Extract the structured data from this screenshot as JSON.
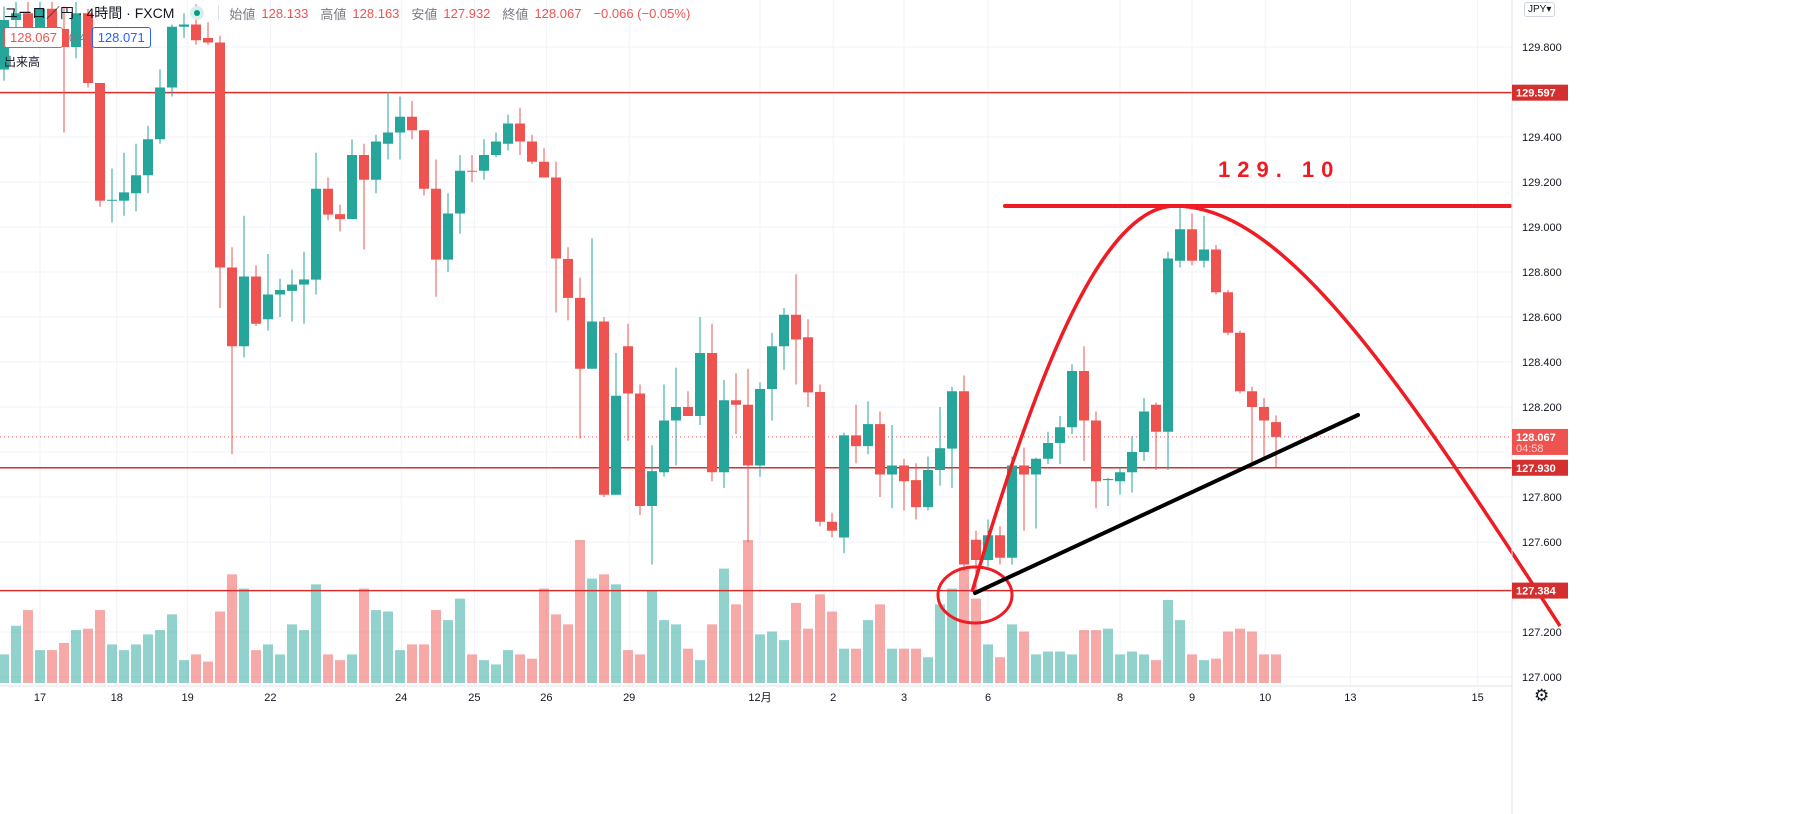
{
  "header": {
    "symbol": "ユーロ／円",
    "interval": "4時間",
    "source": "FXCM",
    "open_label": "始値",
    "open": "128.133",
    "high_label": "高値",
    "high": "128.163",
    "low_label": "安値",
    "low": "127.932",
    "close_label": "終値",
    "close": "128.067",
    "change": "−0.066 (−0.05%)",
    "bid": "128.067",
    "spread": "0.4",
    "ask": "128.071",
    "volume_label": "出来高"
  },
  "axis": {
    "currency": "JPY▾",
    "settings_icon": "gear-icon"
  },
  "colors": {
    "up": "#26a69a",
    "down": "#ef5350",
    "level": "#d32f2f",
    "drawing": "#f01c24",
    "trend": "#000000"
  },
  "chart_data": {
    "type": "candlestick",
    "title": "ユーロ／円 · 4時間 · FXCM",
    "ylim": [
      127.0,
      129.95
    ],
    "y_ticks": [
      "129.800",
      "129.400",
      "129.200",
      "129.000",
      "128.800",
      "128.600",
      "128.400",
      "128.200",
      "127.800",
      "127.600",
      "127.200",
      "127.000"
    ],
    "x_ticks": [
      {
        "label": "17",
        "bar": 3
      },
      {
        "label": "18",
        "bar": 9.4
      },
      {
        "label": "19",
        "bar": 15.3
      },
      {
        "label": "22",
        "bar": 22.2
      },
      {
        "label": "24",
        "bar": 33.1
      },
      {
        "label": "25",
        "bar": 39.2
      },
      {
        "label": "26",
        "bar": 45.2
      },
      {
        "label": "29",
        "bar": 52.1
      },
      {
        "label": "12月",
        "bar": 63
      },
      {
        "label": "2",
        "bar": 69.1
      },
      {
        "label": "3",
        "bar": 75
      },
      {
        "label": "6",
        "bar": 82
      },
      {
        "label": "8",
        "bar": 93
      },
      {
        "label": "9",
        "bar": 99
      },
      {
        "label": "10",
        "bar": 105.1
      },
      {
        "label": "13",
        "bar": 112.2
      },
      {
        "label": "15",
        "bar": 122.8
      }
    ],
    "price_labels": [
      {
        "value": "129.597",
        "kind": "level"
      },
      {
        "value": "128.067",
        "sub": "04:58",
        "kind": "last"
      },
      {
        "value": "127.930",
        "kind": "level"
      },
      {
        "value": "127.384",
        "kind": "level"
      }
    ],
    "horizontal_levels": [
      129.597,
      127.93,
      127.384
    ],
    "last_price": 128.067,
    "annotation": {
      "text": "129. 10",
      "price": 129.1
    },
    "ohlc": [
      [
        129.7,
        129.98,
        129.65,
        129.92
      ],
      [
        129.92,
        130.0,
        129.85,
        129.95
      ],
      [
        129.95,
        130.0,
        129.8,
        129.85
      ],
      [
        129.85,
        130.0,
        129.8,
        129.97
      ],
      [
        129.97,
        130.0,
        129.85,
        129.88
      ],
      [
        129.88,
        129.98,
        129.42,
        129.8
      ],
      [
        129.8,
        130.0,
        129.75,
        129.95
      ],
      [
        129.95,
        129.97,
        129.62,
        129.64
      ],
      [
        129.64,
        129.64,
        129.09,
        129.117
      ],
      [
        129.12,
        129.26,
        129.02,
        129.121
      ],
      [
        129.117,
        129.33,
        129.05,
        129.154
      ],
      [
        129.15,
        129.37,
        129.07,
        129.23
      ],
      [
        129.23,
        129.45,
        129.15,
        129.39
      ],
      [
        129.39,
        129.7,
        129.37,
        129.62
      ],
      [
        129.62,
        129.9,
        129.58,
        129.89
      ],
      [
        129.89,
        129.95,
        129.84,
        129.9
      ],
      [
        129.9,
        129.99,
        129.81,
        129.83
      ],
      [
        129.84,
        129.91,
        129.81,
        129.82
      ],
      [
        129.82,
        129.85,
        128.64,
        128.82
      ],
      [
        128.82,
        128.91,
        127.99,
        128.47
      ],
      [
        128.47,
        129.05,
        128.42,
        128.78
      ],
      [
        128.78,
        128.83,
        128.56,
        128.57
      ],
      [
        128.59,
        128.88,
        128.54,
        128.7
      ],
      [
        128.7,
        128.77,
        128.6,
        128.72
      ],
      [
        128.716,
        128.81,
        128.58,
        128.744
      ],
      [
        128.744,
        128.89,
        128.57,
        128.767
      ],
      [
        128.766,
        129.33,
        128.7,
        129.17
      ],
      [
        129.17,
        129.22,
        129.03,
        129.055
      ],
      [
        129.057,
        129.1,
        128.98,
        129.035
      ],
      [
        129.035,
        129.39,
        129.035,
        129.32
      ],
      [
        129.32,
        129.37,
        128.9,
        129.21
      ],
      [
        129.21,
        129.41,
        129.15,
        129.38
      ],
      [
        129.37,
        129.6,
        129.3,
        129.42
      ],
      [
        129.42,
        129.58,
        129.3,
        129.49
      ],
      [
        129.49,
        129.56,
        129.39,
        129.43
      ],
      [
        129.43,
        129.43,
        129.14,
        129.17
      ],
      [
        129.17,
        129.3,
        128.69,
        128.855
      ],
      [
        128.855,
        129.15,
        128.8,
        129.06
      ],
      [
        129.06,
        129.32,
        128.97,
        129.25
      ],
      [
        129.25,
        129.32,
        129.2,
        129.248
      ],
      [
        129.25,
        129.39,
        129.21,
        129.32
      ],
      [
        129.32,
        129.42,
        129.31,
        129.38
      ],
      [
        129.37,
        129.5,
        129.34,
        129.46
      ],
      [
        129.46,
        129.53,
        129.32,
        129.38
      ],
      [
        129.38,
        129.41,
        129.28,
        129.29
      ],
      [
        129.29,
        129.35,
        129.22,
        129.22
      ],
      [
        129.22,
        129.29,
        128.62,
        128.86
      ],
      [
        128.858,
        128.91,
        128.585,
        128.685
      ],
      [
        128.685,
        128.775,
        128.06,
        128.37
      ],
      [
        128.37,
        128.95,
        128.37,
        128.58
      ],
      [
        128.58,
        128.6,
        127.8,
        127.81
      ],
      [
        127.81,
        128.44,
        127.81,
        128.25
      ],
      [
        128.47,
        128.57,
        128.05,
        128.26
      ],
      [
        128.26,
        128.3,
        127.72,
        127.76
      ],
      [
        127.76,
        128.03,
        127.5,
        127.915
      ],
      [
        127.91,
        128.3,
        127.89,
        128.14
      ],
      [
        128.14,
        128.375,
        127.94,
        128.2
      ],
      [
        128.2,
        128.27,
        128.16,
        128.16
      ],
      [
        128.16,
        128.6,
        128.12,
        128.44
      ],
      [
        128.44,
        128.57,
        127.87,
        127.91
      ],
      [
        127.91,
        128.32,
        127.84,
        128.23
      ],
      [
        128.23,
        128.35,
        128.08,
        128.21
      ],
      [
        128.21,
        128.37,
        127.6,
        127.94
      ],
      [
        127.94,
        128.31,
        127.89,
        128.28
      ],
      [
        128.28,
        128.53,
        128.14,
        128.47
      ],
      [
        128.47,
        128.64,
        128.365,
        128.61
      ],
      [
        128.61,
        128.79,
        128.3,
        128.5
      ],
      [
        128.51,
        128.59,
        128.2,
        128.265
      ],
      [
        128.267,
        128.3,
        127.67,
        127.69
      ],
      [
        127.69,
        127.73,
        127.62,
        127.65
      ],
      [
        127.62,
        128.086,
        127.55,
        128.074
      ],
      [
        128.074,
        128.21,
        127.95,
        128.026
      ],
      [
        128.026,
        128.225,
        127.99,
        128.124
      ],
      [
        128.124,
        128.18,
        127.8,
        127.9
      ],
      [
        127.9,
        128.12,
        127.75,
        127.94
      ],
      [
        127.94,
        127.97,
        127.74,
        127.87
      ],
      [
        127.875,
        127.95,
        127.7,
        127.755
      ],
      [
        127.755,
        127.98,
        127.74,
        127.92
      ],
      [
        127.92,
        128.2,
        127.85,
        128.017
      ],
      [
        128.015,
        128.29,
        127.84,
        128.27
      ],
      [
        128.27,
        128.34,
        127.47,
        127.5
      ],
      [
        127.61,
        127.65,
        127.38,
        127.52
      ],
      [
        127.52,
        127.7,
        127.49,
        127.63
      ],
      [
        127.63,
        127.67,
        127.5,
        127.53
      ],
      [
        127.53,
        127.98,
        127.5,
        127.94
      ],
      [
        127.94,
        128.02,
        127.65,
        127.9
      ],
      [
        127.9,
        127.975,
        127.66,
        127.97
      ],
      [
        127.97,
        128.09,
        127.946,
        128.04
      ],
      [
        128.04,
        128.16,
        127.946,
        128.11
      ],
      [
        128.11,
        128.39,
        128.08,
        128.36
      ],
      [
        128.36,
        128.47,
        127.96,
        128.14
      ],
      [
        128.14,
        128.18,
        127.75,
        127.87
      ],
      [
        127.875,
        127.885,
        127.76,
        127.88
      ],
      [
        127.87,
        127.93,
        127.81,
        127.91
      ],
      [
        127.91,
        128.07,
        127.82,
        128.0
      ],
      [
        128.0,
        128.24,
        127.96,
        128.18
      ],
      [
        128.21,
        128.22,
        127.92,
        128.09
      ],
      [
        128.09,
        128.89,
        127.92,
        128.86
      ],
      [
        128.85,
        129.09,
        128.82,
        128.99
      ],
      [
        128.99,
        129.06,
        128.83,
        128.85
      ],
      [
        128.85,
        129.05,
        128.82,
        128.9
      ],
      [
        128.9,
        128.92,
        128.7,
        128.71
      ],
      [
        128.71,
        128.72,
        128.52,
        128.53
      ],
      [
        128.53,
        128.54,
        128.26,
        128.27
      ],
      [
        128.27,
        128.29,
        127.94,
        128.2
      ],
      [
        128.2,
        128.24,
        127.98,
        128.14
      ],
      [
        128.133,
        128.163,
        127.932,
        128.067
      ]
    ],
    "volume_relative": [
      20,
      40,
      51,
      23,
      23,
      28,
      37,
      38,
      51,
      27,
      23,
      27,
      34,
      37,
      48,
      16,
      20,
      15,
      50,
      76,
      66,
      23,
      27,
      20,
      41,
      37,
      69,
      20,
      16,
      20,
      66,
      51,
      50,
      23,
      27,
      27,
      51,
      44,
      59,
      20,
      16,
      13,
      23,
      20,
      17,
      66,
      48,
      41,
      100,
      73,
      76,
      69,
      23,
      20,
      65,
      44,
      41,
      24,
      16,
      41,
      80,
      55,
      100,
      34,
      36,
      30,
      56,
      38,
      62,
      50,
      24,
      24,
      44,
      55,
      24,
      24,
      24,
      18,
      55,
      66,
      81,
      59,
      27,
      18,
      41,
      36,
      20,
      22,
      22,
      20,
      37,
      37,
      38,
      20,
      22,
      20,
      16,
      58,
      44,
      20,
      16,
      17,
      36,
      38,
      36,
      20,
      20
    ]
  }
}
